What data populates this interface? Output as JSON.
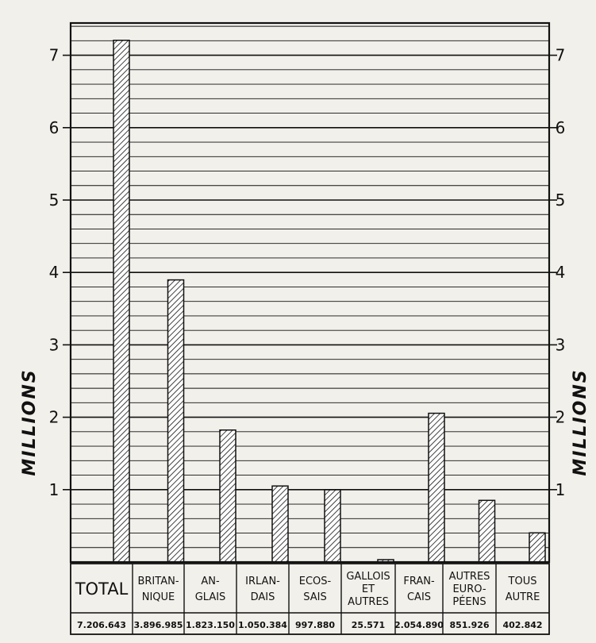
{
  "chart_data": {
    "type": "bar",
    "categories": [
      [
        "TOTAL"
      ],
      [
        "BRITAN-",
        "NIQUE"
      ],
      [
        "AN-",
        "GLAIS"
      ],
      [
        "IRLAN-",
        "DAIS"
      ],
      [
        "ECOS-",
        "SAIS"
      ],
      [
        "GALLOIS",
        "ET",
        "AUTRES"
      ],
      [
        "FRAN-",
        "CAIS"
      ],
      [
        "AUTRES",
        "EURO-",
        "PÉENS"
      ],
      [
        "TOUS",
        "AUTRE"
      ]
    ],
    "values": [
      7206643,
      3896985,
      1823150,
      1050384,
      997880,
      25571,
      2054890,
      851926,
      402842
    ],
    "value_labels": [
      "7.206.643",
      "3.896.985",
      "1.823.150",
      "1.050.384",
      "997.880",
      "25.571",
      "2.054.890",
      "851.926",
      "402.842"
    ],
    "ylabel": "MILLIONS",
    "ylabel_right": "MILLIONS",
    "ylim": [
      0,
      7.5
    ],
    "yticks": [
      "1",
      "2",
      "3",
      "4",
      "5",
      "6",
      "7"
    ],
    "unit_scale": 1000000,
    "grid": true,
    "bar_fill": "hatched",
    "colors": {
      "ink": "#111111",
      "paper": "#f2f0ea"
    }
  }
}
